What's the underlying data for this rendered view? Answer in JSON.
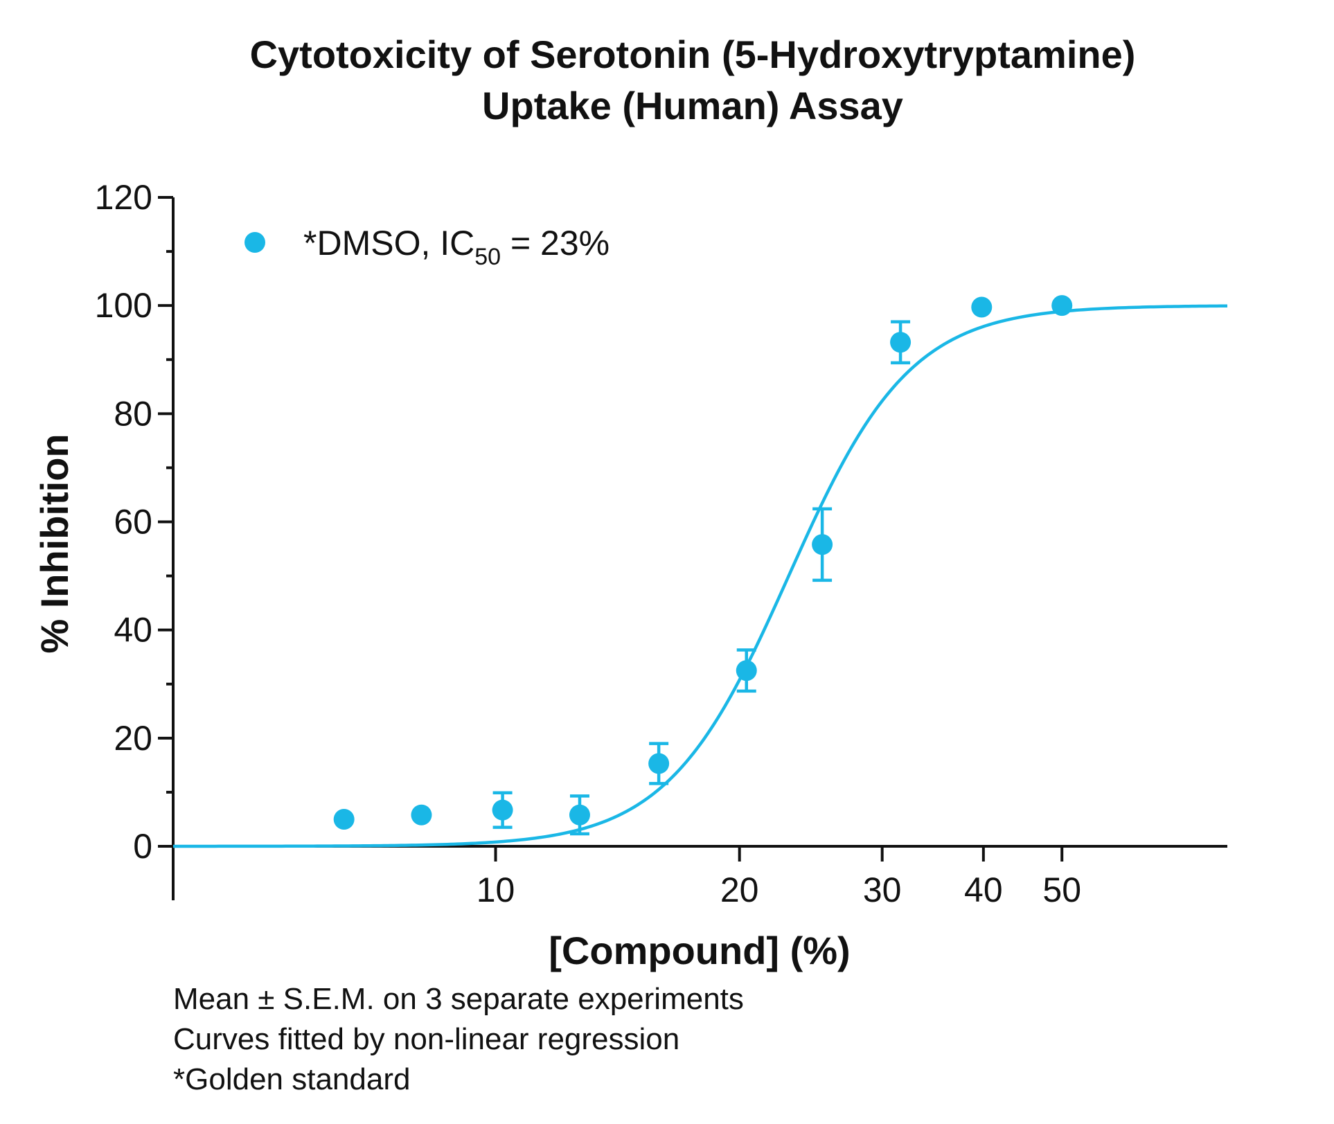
{
  "chart_data": {
    "type": "scatter",
    "title_lines": [
      "Cytotoxicity of Serotonin (5-Hydroxytryptamine)",
      "Uptake (Human) Assay"
    ],
    "xlabel": "[Compound] (%)",
    "ylabel": "% Inhibition",
    "x_scale": "log",
    "xlim": [
      4,
      80
    ],
    "ylim": [
      0,
      120
    ],
    "x_ticks": [
      10,
      20,
      30,
      40,
      50
    ],
    "y_ticks": [
      0,
      20,
      40,
      60,
      80,
      100,
      120
    ],
    "grid": false,
    "legend_position": "top-left",
    "colors": {
      "series": "#1ab7e6",
      "axis": "#111111"
    },
    "series": [
      {
        "name": "*DMSO, IC",
        "name_subscript": "50",
        "name_suffix": " = 23%",
        "points": [
          {
            "x": 6.5,
            "y": 5.0
          },
          {
            "x": 8.1,
            "y": 5.8
          },
          {
            "x": 10.2,
            "y": 6.7,
            "err": 3.2
          },
          {
            "x": 12.7,
            "y": 5.8,
            "err": 3.5
          },
          {
            "x": 15.9,
            "y": 15.3,
            "err": 3.7
          },
          {
            "x": 20.4,
            "y": 32.5,
            "err": 3.8
          },
          {
            "x": 25.3,
            "y": 55.8,
            "err": 6.6
          },
          {
            "x": 31.6,
            "y": 93.2,
            "err": 3.8
          },
          {
            "x": 39.8,
            "y": 99.7
          },
          {
            "x": 50.0,
            "y": 100.0
          }
        ],
        "fit": {
          "model": "sigmoid",
          "bottom": 0,
          "top": 100,
          "ic50": 23,
          "hill": 5.8
        }
      }
    ]
  },
  "notes": [
    "Mean ± S.E.M. on 3 separate experiments",
    "Curves fitted by non-linear regression",
    "*Golden standard"
  ]
}
